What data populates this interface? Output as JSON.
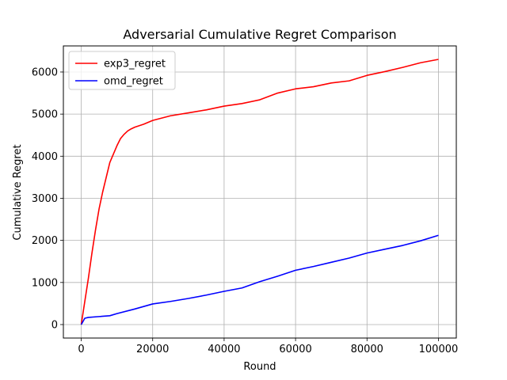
{
  "chart_data": {
    "type": "line",
    "title": "Adversarial Cumulative Regret Comparison",
    "xlabel": "Round",
    "ylabel": "Cumulative Regret",
    "xlim": [
      -5000,
      105000
    ],
    "ylim": [
      -320,
      6620
    ],
    "xticks": [
      0,
      20000,
      40000,
      60000,
      80000,
      100000
    ],
    "xtick_labels": [
      "0",
      "20000",
      "40000",
      "60000",
      "80000",
      "100000"
    ],
    "yticks": [
      0,
      1000,
      2000,
      3000,
      4000,
      5000,
      6000
    ],
    "ytick_labels": [
      "0",
      "1000",
      "2000",
      "3000",
      "4000",
      "5000",
      "6000"
    ],
    "grid": true,
    "legend_position": "top-left",
    "series": [
      {
        "name": "exp3_regret",
        "color": "#ff0000",
        "x": [
          0,
          1000,
          2000,
          3000,
          4000,
          5000,
          6000,
          7000,
          8000,
          9000,
          10000,
          11000,
          12000,
          13000,
          14000,
          15000,
          17500,
          20000,
          25000,
          30000,
          35000,
          40000,
          45000,
          50000,
          55000,
          60000,
          65000,
          70000,
          75000,
          80000,
          85000,
          90000,
          95000,
          100000
        ],
        "values": [
          0,
          550,
          1100,
          1700,
          2250,
          2750,
          3150,
          3500,
          3850,
          4050,
          4250,
          4420,
          4520,
          4600,
          4650,
          4690,
          4760,
          4850,
          4960,
          5030,
          5100,
          5190,
          5250,
          5340,
          5500,
          5600,
          5650,
          5740,
          5790,
          5920,
          6010,
          6110,
          6220,
          6300
        ]
      },
      {
        "name": "omd_regret",
        "color": "#0000ff",
        "x": [
          0,
          1000,
          2000,
          5000,
          8000,
          10000,
          15000,
          20000,
          25000,
          30000,
          35000,
          40000,
          45000,
          50000,
          55000,
          60000,
          65000,
          70000,
          75000,
          80000,
          85000,
          90000,
          95000,
          100000
        ],
        "values": [
          0,
          150,
          170,
          190,
          210,
          260,
          370,
          490,
          550,
          620,
          700,
          790,
          870,
          1020,
          1150,
          1290,
          1380,
          1480,
          1580,
          1700,
          1790,
          1880,
          1990,
          2120
        ]
      }
    ]
  }
}
